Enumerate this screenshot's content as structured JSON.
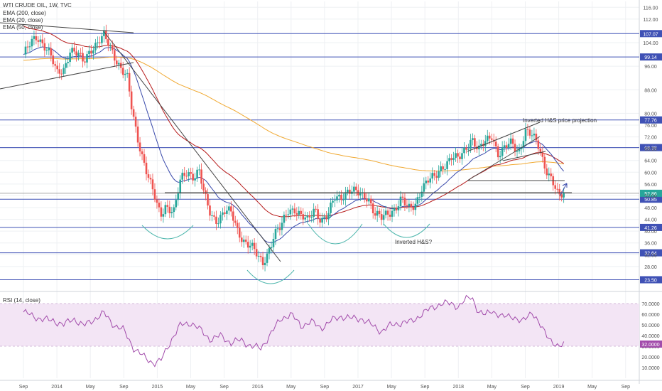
{
  "legend": {
    "title": "WTI CRUDE OIL, 1W, TVC",
    "ema200": "EMA (200, close)",
    "ema20": "EMA (20, close)",
    "ema50": "EMA (50, close)",
    "rsi": "RSI (14, close)"
  },
  "annotations": {
    "projection": "Inverted H&S price projection",
    "hs": "Inverted H&S?"
  },
  "colors": {
    "up": "#26a69a",
    "down": "#ef5350",
    "hline": "#3f51b5",
    "ema20": "#3949ab",
    "ema50": "#b71c1c",
    "ema200": "#f0a830",
    "rsi": "#a24cab",
    "rsi_band": "#f3e5f5",
    "arc": "#4db6ac"
  },
  "chart_data": {
    "type": "candlestick",
    "x_ticks": [
      "Sep",
      "2014",
      "May",
      "Sep",
      "2015",
      "May",
      "Sep",
      "2016",
      "May",
      "Sep",
      "2017",
      "May",
      "Sep",
      "2018",
      "May",
      "Sep",
      "2019",
      "May",
      "Sep"
    ],
    "y_ticks": [
      28,
      32,
      36,
      40,
      44,
      48,
      52,
      56,
      60,
      64,
      68,
      72,
      76,
      80,
      88,
      96,
      104,
      112,
      116
    ],
    "y_range": [
      20,
      118
    ],
    "levels": [
      {
        "value": 107.07,
        "label": "107.07"
      },
      {
        "value": 99.14,
        "label": "99.14"
      },
      {
        "value": 77.76,
        "label": "77.76"
      },
      {
        "value": 68.38,
        "label": "68.38"
      },
      {
        "value": 50.85,
        "label": "50.85"
      },
      {
        "value": 41.26,
        "label": "41.26"
      },
      {
        "value": 32.64,
        "label": "32.64"
      },
      {
        "value": 23.5,
        "label": "23.50"
      }
    ],
    "last_price": {
      "value": 52.86,
      "label": "52.86"
    },
    "price_path": [
      [
        0,
        100
      ],
      [
        0.2,
        103
      ],
      [
        0.4,
        106
      ],
      [
        0.6,
        104
      ],
      [
        0.8,
        100
      ],
      [
        1.0,
        93
      ],
      [
        1.2,
        95
      ],
      [
        1.4,
        102
      ],
      [
        1.6,
        100
      ],
      [
        1.8,
        97
      ],
      [
        2.0,
        102
      ],
      [
        2.2,
        104
      ],
      [
        2.4,
        106
      ],
      [
        2.6,
        102
      ],
      [
        2.9,
        96
      ],
      [
        3.1,
        92
      ],
      [
        3.25,
        80
      ],
      [
        3.4,
        72
      ],
      [
        3.55,
        66
      ],
      [
        3.7,
        60
      ],
      [
        3.85,
        54
      ],
      [
        4.0,
        48
      ],
      [
        4.1,
        45
      ],
      [
        4.25,
        49
      ],
      [
        4.5,
        47
      ],
      [
        4.7,
        57
      ],
      [
        4.9,
        60
      ],
      [
        5.1,
        59
      ],
      [
        5.25,
        61
      ],
      [
        5.4,
        52
      ],
      [
        5.6,
        45
      ],
      [
        5.8,
        44
      ],
      [
        6.0,
        47
      ],
      [
        6.2,
        46
      ],
      [
        6.4,
        40
      ],
      [
        6.6,
        37
      ],
      [
        6.8,
        35
      ],
      [
        7.0,
        31
      ],
      [
        7.15,
        29
      ],
      [
        7.3,
        33
      ],
      [
        7.5,
        39
      ],
      [
        7.7,
        41
      ],
      [
        7.9,
        47
      ],
      [
        8.1,
        48
      ],
      [
        8.3,
        45
      ],
      [
        8.5,
        43
      ],
      [
        8.7,
        48
      ],
      [
        8.9,
        44
      ],
      [
        9.1,
        45
      ],
      [
        9.3,
        51
      ],
      [
        9.5,
        52
      ],
      [
        9.7,
        54
      ],
      [
        9.9,
        53
      ],
      [
        10.1,
        52
      ],
      [
        10.3,
        52
      ],
      [
        10.5,
        46
      ],
      [
        10.7,
        44
      ],
      [
        10.9,
        46
      ],
      [
        11.1,
        48
      ],
      [
        11.3,
        51
      ],
      [
        11.5,
        47
      ],
      [
        11.7,
        49
      ],
      [
        11.9,
        55
      ],
      [
        12.1,
        57
      ],
      [
        12.3,
        58
      ],
      [
        12.5,
        62
      ],
      [
        12.8,
        65
      ],
      [
        13.0,
        64
      ],
      [
        13.2,
        68
      ],
      [
        13.4,
        72
      ],
      [
        13.6,
        67
      ],
      [
        13.8,
        70
      ],
      [
        14.0,
        73
      ],
      [
        14.2,
        66
      ],
      [
        14.4,
        68
      ],
      [
        14.6,
        70
      ],
      [
        14.8,
        67
      ],
      [
        15.0,
        74
      ],
      [
        15.2,
        72
      ],
      [
        15.4,
        69
      ],
      [
        15.6,
        62
      ],
      [
        15.8,
        57
      ],
      [
        16.0,
        51
      ],
      [
        16.15,
        53
      ]
    ],
    "rsi_range": [
      0,
      80
    ],
    "rsi_ticks": [
      10,
      20,
      30,
      40,
      50,
      60,
      70
    ],
    "rsi_band": [
      30,
      70
    ],
    "rsi_last": 32,
    "rsi_path": [
      [
        0,
        62
      ],
      [
        0.3,
        58
      ],
      [
        0.6,
        55
      ],
      [
        0.9,
        54
      ],
      [
        1.2,
        50
      ],
      [
        1.5,
        56
      ],
      [
        1.8,
        49
      ],
      [
        2.1,
        55
      ],
      [
        2.4,
        61
      ],
      [
        2.7,
        50
      ],
      [
        3.0,
        45
      ],
      [
        3.3,
        28
      ],
      [
        3.6,
        20
      ],
      [
        3.9,
        14
      ],
      [
        4.1,
        16
      ],
      [
        4.4,
        35
      ],
      [
        4.7,
        50
      ],
      [
        5.0,
        52
      ],
      [
        5.3,
        45
      ],
      [
        5.6,
        36
      ],
      [
        5.9,
        40
      ],
      [
        6.2,
        33
      ],
      [
        6.5,
        36
      ],
      [
        6.8,
        30
      ],
      [
        7.1,
        28
      ],
      [
        7.4,
        42
      ],
      [
        7.7,
        56
      ],
      [
        8.0,
        60
      ],
      [
        8.3,
        49
      ],
      [
        8.6,
        53
      ],
      [
        8.9,
        47
      ],
      [
        9.2,
        54
      ],
      [
        9.5,
        58
      ],
      [
        9.8,
        56
      ],
      [
        10.1,
        56
      ],
      [
        10.4,
        50
      ],
      [
        10.7,
        44
      ],
      [
        11.0,
        50
      ],
      [
        11.3,
        52
      ],
      [
        11.6,
        53
      ],
      [
        11.9,
        60
      ],
      [
        12.2,
        66
      ],
      [
        12.5,
        70
      ],
      [
        12.8,
        70
      ],
      [
        13.0,
        67
      ],
      [
        13.2,
        73
      ],
      [
        13.4,
        77
      ],
      [
        13.6,
        62
      ],
      [
        13.8,
        59
      ],
      [
        14.0,
        64
      ],
      [
        14.3,
        57
      ],
      [
        14.6,
        59
      ],
      [
        14.9,
        52
      ],
      [
        15.2,
        63
      ],
      [
        15.5,
        46
      ],
      [
        15.8,
        35
      ],
      [
        16.0,
        28
      ],
      [
        16.15,
        32
      ]
    ]
  }
}
